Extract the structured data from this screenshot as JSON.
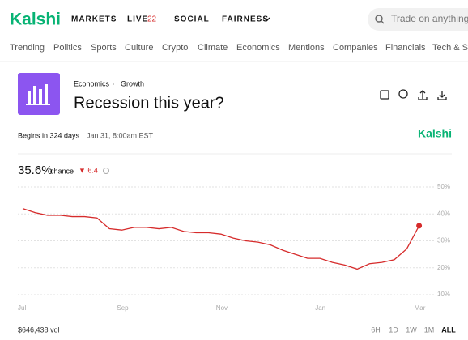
{
  "header": {
    "logo": "Kalshi",
    "nav": [
      "MARKETS",
      "LIVE",
      "SOCIAL",
      "FAIRNESS"
    ],
    "live_count": "22",
    "search_placeholder": "Trade on anything"
  },
  "topics": [
    "Trending",
    "Politics",
    "Sports",
    "Culture",
    "Crypto",
    "Climate",
    "Economics",
    "Mentions",
    "Companies",
    "Financials",
    "Tech & Science"
  ],
  "market": {
    "category": "Economics",
    "subcategory": "Growth",
    "title": "Recession this year?",
    "begins": "Begins in 324 days",
    "date": "Jan 31, 8:00am EST",
    "brand": "Kalshi",
    "chance": "35.6%",
    "chance_label": "chance",
    "change": "▼ 6.4",
    "volume": "$646,438 vol",
    "ranges": [
      "6H",
      "1D",
      "1W",
      "1M",
      "ALL"
    ]
  },
  "chart": {
    "type": "line",
    "color": "#d62b2b",
    "categories": [
      "Jul",
      null,
      null,
      null,
      null,
      null,
      null,
      null,
      "Sep",
      null,
      null,
      null,
      null,
      null,
      null,
      null,
      "Nov",
      null,
      null,
      null,
      null,
      null,
      null,
      null,
      "Jan",
      null,
      null,
      null,
      null,
      null,
      null,
      null,
      "Mar"
    ],
    "values": [
      42,
      40.5,
      39.5,
      39.5,
      39,
      39,
      38.5,
      34.5,
      34,
      35,
      35,
      34.5,
      35,
      33.5,
      33,
      33,
      32.5,
      31,
      30,
      29.5,
      28.5,
      26.5,
      25,
      23.5,
      23.5,
      22,
      21,
      19.5,
      21.5,
      22,
      23,
      27,
      35.6
    ],
    "ylim": [
      10,
      50
    ],
    "yticks": [
      {
        "value": 50,
        "label": "50%"
      },
      {
        "value": 40,
        "label": "40%"
      },
      {
        "value": 30,
        "label": "30%"
      },
      {
        "value": 20,
        "label": "20%"
      },
      {
        "value": 10,
        "label": "10%"
      }
    ],
    "grid": true
  }
}
